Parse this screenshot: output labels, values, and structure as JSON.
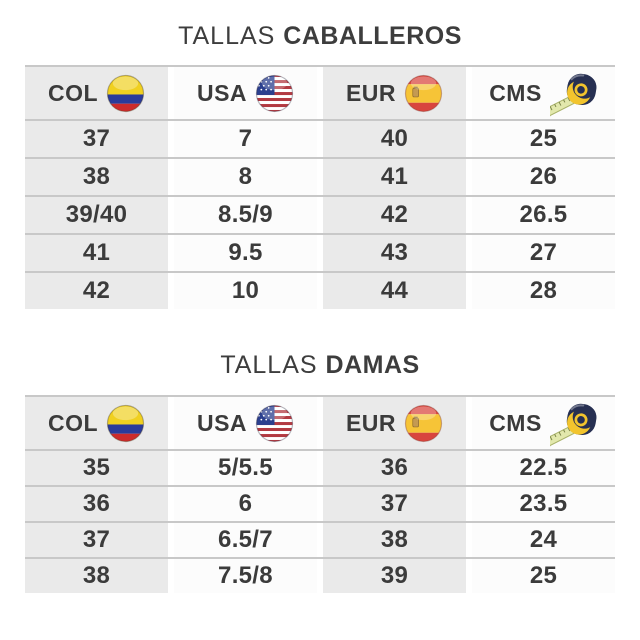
{
  "page": {
    "background": "#ffffff"
  },
  "colors": {
    "text": "#3b3b3b",
    "cell_gray": "#eaeaea",
    "cell_white": "#fcfcfc",
    "divider": "#c8c8c8",
    "colombia_flag": {
      "yellow": "#f0d020",
      "blue": "#2a3b9a",
      "red": "#cc2b2b"
    },
    "usa_flag": {
      "red": "#b23a42",
      "white": "#ffffff",
      "blue": "#2b3f8e"
    },
    "spain_flag": {
      "red": "#d8453e",
      "yellow": "#f6c437"
    },
    "tape_measure": {
      "body": "#273052",
      "accent": "#f2c42d",
      "tape": "#e2e8ac"
    }
  },
  "icons": {
    "col": "colombia-flag-icon",
    "usa": "usa-flag-icon",
    "eur": "spain-flag-icon",
    "cms": "tape-measure-icon"
  },
  "tables": [
    {
      "title_light": "TALLAS",
      "title_bold": "CABALLEROS",
      "columns": [
        {
          "label": "COL",
          "icon": "colombia-flag-icon"
        },
        {
          "label": "USA",
          "icon": "usa-flag-icon"
        },
        {
          "label": "EUR",
          "icon": "spain-flag-icon"
        },
        {
          "label": "CMS",
          "icon": "tape-measure-icon"
        }
      ],
      "rows": [
        [
          "37",
          "7",
          "40",
          "25"
        ],
        [
          "38",
          "8",
          "41",
          "26"
        ],
        [
          "39/40",
          "8.5/9",
          "42",
          "26.5"
        ],
        [
          "41",
          "9.5",
          "43",
          "27"
        ],
        [
          "42",
          "10",
          "44",
          "28"
        ]
      ]
    },
    {
      "title_light": "TALLAS",
      "title_bold": "DAMAS",
      "columns": [
        {
          "label": "COL",
          "icon": "colombia-flag-icon"
        },
        {
          "label": "USA",
          "icon": "usa-flag-icon"
        },
        {
          "label": "EUR",
          "icon": "spain-flag-icon"
        },
        {
          "label": "CMS",
          "icon": "tape-measure-icon"
        }
      ],
      "rows": [
        [
          "35",
          "5/5.5",
          "36",
          "22.5"
        ],
        [
          "36",
          "6",
          "37",
          "23.5"
        ],
        [
          "37",
          "6.5/7",
          "38",
          "24"
        ],
        [
          "38",
          "7.5/8",
          "39",
          "25"
        ]
      ]
    }
  ],
  "chart_data": [
    {
      "type": "table",
      "title": "TALLAS CABALLEROS",
      "columns": [
        "COL",
        "USA",
        "EUR",
        "CMS"
      ],
      "rows": [
        [
          "37",
          "7",
          "40",
          "25"
        ],
        [
          "38",
          "8",
          "41",
          "26"
        ],
        [
          "39/40",
          "8.5/9",
          "42",
          "26.5"
        ],
        [
          "41",
          "9.5",
          "43",
          "27"
        ],
        [
          "42",
          "10",
          "44",
          "28"
        ]
      ]
    },
    {
      "type": "table",
      "title": "TALLAS DAMAS",
      "columns": [
        "COL",
        "USA",
        "EUR",
        "CMS"
      ],
      "rows": [
        [
          "35",
          "5/5.5",
          "36",
          "22.5"
        ],
        [
          "36",
          "6",
          "37",
          "23.5"
        ],
        [
          "37",
          "6.5/7",
          "38",
          "24"
        ],
        [
          "38",
          "7.5/8",
          "39",
          "25"
        ]
      ]
    }
  ]
}
